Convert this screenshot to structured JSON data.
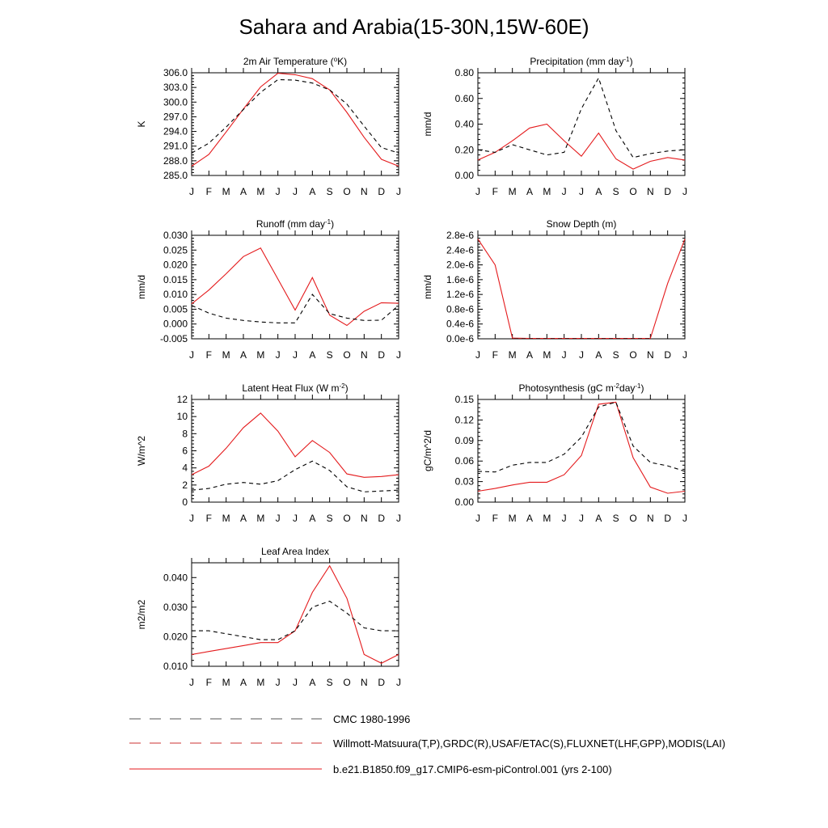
{
  "title": "Sahara and Arabia(15-30N,15W-60E)",
  "months": [
    "J",
    "F",
    "M",
    "A",
    "M",
    "J",
    "J",
    "A",
    "S",
    "O",
    "N",
    "D",
    "J"
  ],
  "colors": {
    "model": "#e41a1c",
    "obs": "#000000"
  },
  "legend": [
    {
      "label": "CMC 1980-1996",
      "style": "dashed",
      "color": "#555555"
    },
    {
      "label": "Willmott-Matsuura(T,P),GRDC(R),USAF/ETAC(S),FLUXNET(LHF,GPP),MODIS(LAI)",
      "style": "dashed",
      "color": "#cc3333"
    },
    {
      "label": "b.e21.B1850.f09_g17.CMIP6-esm-piControl.001 (yrs 2-100)",
      "style": "solid",
      "color": "#e41a1c"
    }
  ],
  "chart_data": [
    {
      "id": "temp",
      "type": "line",
      "title": "2m Air Temperature (",
      "title_sup": "o",
      "title_tail": "K)",
      "ylabel": "K",
      "ylim": [
        285.0,
        306.0
      ],
      "yticks": [
        285.0,
        288.0,
        291.0,
        294.0,
        297.0,
        300.0,
        303.0,
        306.0
      ],
      "yticklabels": [
        "285.0",
        "288.0",
        "291.0",
        "294.0",
        "297.0",
        "300.0",
        "303.0",
        "306.0"
      ],
      "series": [
        {
          "name": "model",
          "style": "solid",
          "values": [
            286.9,
            289.3,
            293.9,
            298.6,
            303.1,
            305.9,
            305.6,
            304.8,
            302.5,
            297.9,
            292.8,
            288.3,
            286.9
          ]
        },
        {
          "name": "obs",
          "style": "dashed",
          "values": [
            289.6,
            291.6,
            294.9,
            298.5,
            302.0,
            304.6,
            304.5,
            303.9,
            302.5,
            299.6,
            295.1,
            290.7,
            289.6
          ]
        }
      ]
    },
    {
      "id": "precip",
      "type": "line",
      "title": "Precipitation (mm day",
      "title_sup": "-1",
      "title_tail": ")",
      "ylabel": "mm/d",
      "ylim": [
        0.0,
        0.8
      ],
      "yticks": [
        0.0,
        0.2,
        0.4,
        0.6,
        0.8
      ],
      "yticklabels": [
        "0.00",
        "0.20",
        "0.40",
        "0.60",
        "0.80"
      ],
      "series": [
        {
          "name": "model",
          "style": "solid",
          "values": [
            0.12,
            0.18,
            0.27,
            0.37,
            0.4,
            0.27,
            0.15,
            0.33,
            0.13,
            0.05,
            0.11,
            0.14,
            0.12
          ]
        },
        {
          "name": "obs",
          "style": "dashed",
          "values": [
            0.2,
            0.18,
            0.24,
            0.2,
            0.16,
            0.18,
            0.52,
            0.76,
            0.35,
            0.14,
            0.17,
            0.19,
            0.2
          ]
        }
      ]
    },
    {
      "id": "runoff",
      "type": "line",
      "title": "Runoff (mm day",
      "title_sup": "-1",
      "title_tail": ")",
      "ylabel": "mm/d",
      "ylim": [
        -0.005,
        0.03
      ],
      "yticks": [
        -0.005,
        0.0,
        0.005,
        0.01,
        0.015,
        0.02,
        0.025,
        0.03
      ],
      "yticklabels": [
        "-0.005",
        "0.000",
        "0.005",
        "0.010",
        "0.015",
        "0.020",
        "0.025",
        "0.030"
      ],
      "series": [
        {
          "name": "model",
          "style": "solid",
          "values": [
            0.0068,
            0.0115,
            0.017,
            0.0228,
            0.0257,
            0.0152,
            0.0047,
            0.0157,
            0.003,
            -0.0005,
            0.0043,
            0.0072,
            0.007
          ]
        },
        {
          "name": "obs",
          "style": "dashed",
          "values": [
            0.0063,
            0.0037,
            0.002,
            0.0012,
            0.0007,
            0.0004,
            0.0004,
            0.01,
            0.0035,
            0.002,
            0.0012,
            0.0013,
            0.0063
          ]
        }
      ]
    },
    {
      "id": "snow",
      "type": "line",
      "title": "Snow Depth (m)",
      "title_sup": "",
      "title_tail": "",
      "ylabel": "mm/d",
      "ylim": [
        0.0,
        2.8
      ],
      "yticks": [
        0.0,
        0.4,
        0.8,
        1.2,
        1.6,
        2.0,
        2.4,
        2.8
      ],
      "yticklabels": [
        "0.0e-6",
        "0.4e-6",
        "0.8e-6",
        "1.2e-6",
        "1.6e-6",
        "2.0e-6",
        "2.4e-6",
        "2.8e-6"
      ],
      "series": [
        {
          "name": "model",
          "style": "solid",
          "values": [
            2.7,
            2.0,
            0.02,
            0.01,
            0.01,
            0.01,
            0.01,
            0.01,
            0.01,
            0.01,
            0.01,
            1.5,
            2.7
          ]
        },
        {
          "name": "obs",
          "style": "dashed",
          "values": [
            0.0,
            0.0,
            0.0,
            0.0,
            0.0,
            0.0,
            0.0,
            0.0,
            0.0,
            0.0,
            0.0,
            0.0,
            0.0
          ]
        }
      ]
    },
    {
      "id": "lhf",
      "type": "line",
      "title": "Latent Heat Flux (W m",
      "title_sup": "-2",
      "title_tail": ")",
      "ylabel": "W/m^2",
      "ylim": [
        0,
        12
      ],
      "yticks": [
        0,
        2,
        4,
        6,
        8,
        10,
        12
      ],
      "yticklabels": [
        "0",
        "2",
        "4",
        "6",
        "8",
        "10",
        "12"
      ],
      "series": [
        {
          "name": "model",
          "style": "solid",
          "values": [
            3.2,
            4.2,
            6.3,
            8.7,
            10.4,
            8.3,
            5.3,
            7.2,
            5.8,
            3.3,
            2.9,
            3.0,
            3.2
          ]
        },
        {
          "name": "obs",
          "style": "dashed",
          "values": [
            1.4,
            1.6,
            2.1,
            2.3,
            2.1,
            2.5,
            3.8,
            4.8,
            3.7,
            1.8,
            1.2,
            1.3,
            1.4
          ]
        }
      ]
    },
    {
      "id": "gpp",
      "type": "line",
      "title": "Photosynthesis (gC m",
      "title_sup": "-2",
      "title_tail": "day",
      "title_sup2": "-1",
      "title_tail2": ")",
      "ylabel": "gC/m^2/d",
      "ylim": [
        0.0,
        0.15
      ],
      "yticks": [
        0.0,
        0.03,
        0.06,
        0.09,
        0.12,
        0.15
      ],
      "yticklabels": [
        "0.00",
        "0.03",
        "0.06",
        "0.09",
        "0.12",
        "0.15"
      ],
      "series": [
        {
          "name": "model",
          "style": "solid",
          "values": [
            0.016,
            0.02,
            0.025,
            0.029,
            0.029,
            0.04,
            0.068,
            0.143,
            0.146,
            0.065,
            0.022,
            0.013,
            0.016
          ]
        },
        {
          "name": "obs",
          "style": "dashed",
          "values": [
            0.045,
            0.044,
            0.054,
            0.058,
            0.058,
            0.07,
            0.095,
            0.139,
            0.146,
            0.082,
            0.058,
            0.053,
            0.045
          ]
        }
      ]
    },
    {
      "id": "lai",
      "type": "line",
      "title": "Leaf Area Index",
      "title_sup": "",
      "title_tail": "",
      "ylabel": "m2/m2",
      "ylim": [
        0.01,
        0.045
      ],
      "yticks": [
        0.01,
        0.02,
        0.03,
        0.04
      ],
      "yticklabels": [
        "0.010",
        "0.020",
        "0.030",
        "0.040"
      ],
      "series": [
        {
          "name": "model",
          "style": "solid",
          "values": [
            0.014,
            0.015,
            0.016,
            0.017,
            0.018,
            0.018,
            0.022,
            0.035,
            0.044,
            0.033,
            0.014,
            0.011,
            0.014
          ]
        },
        {
          "name": "obs",
          "style": "dashed",
          "values": [
            0.022,
            0.022,
            0.021,
            0.02,
            0.019,
            0.019,
            0.022,
            0.03,
            0.032,
            0.028,
            0.023,
            0.022,
            0.022
          ]
        }
      ]
    }
  ]
}
